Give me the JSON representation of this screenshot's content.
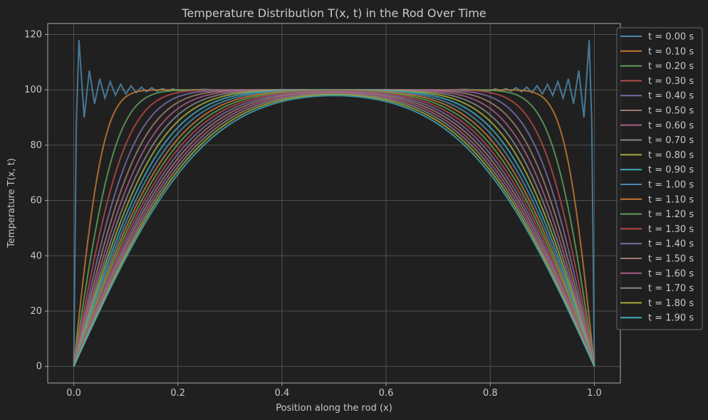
{
  "chart_data": {
    "type": "line",
    "title": "Temperature Distribution T(x, t) in the Rod Over Time",
    "xlabel": "Position along the rod (x)",
    "ylabel": "Temperature T(x, t)",
    "xlim": [
      -0.05,
      1.05
    ],
    "ylim": [
      -6,
      124
    ],
    "xticks": [
      0.0,
      0.2,
      0.4,
      0.6,
      0.8,
      1.0
    ],
    "xtick_labels": [
      "0.0",
      "0.2",
      "0.4",
      "0.6",
      "0.8",
      "1.0"
    ],
    "yticks": [
      0,
      20,
      40,
      60,
      80,
      100,
      120
    ],
    "ytick_labels": [
      "0",
      "20",
      "40",
      "60",
      "80",
      "100",
      "120"
    ],
    "grid": true,
    "legend_position": "right, outside plot at top",
    "background": "#202020",
    "grid_color": "#505050",
    "axis_color": "#aaaaaa",
    "colors": [
      "#4e87ad",
      "#c27a33",
      "#5f9f5a",
      "#b54848",
      "#7e6aa6",
      "#a07b6f",
      "#a85a86",
      "#868686",
      "#a8aa3b",
      "#3ea9b9"
    ],
    "series": [
      {
        "name": "t = 0.00 s",
        "t": 0.0,
        "x": [
          0.0,
          0.005,
          0.01,
          0.02,
          0.03,
          0.04,
          0.05,
          0.06,
          0.07,
          0.08,
          0.09,
          0.1,
          0.11,
          0.12,
          0.13,
          0.14,
          0.15,
          0.16,
          0.17,
          0.18,
          0.19,
          0.2,
          0.25,
          0.3,
          0.4,
          0.5,
          0.6,
          0.7,
          0.75,
          0.8,
          0.81,
          0.82,
          0.83,
          0.84,
          0.85,
          0.86,
          0.87,
          0.88,
          0.89,
          0.9,
          0.91,
          0.92,
          0.93,
          0.94,
          0.95,
          0.96,
          0.97,
          0.98,
          0.99,
          0.995,
          1.0
        ],
        "y": [
          0,
          88,
          118,
          90,
          107,
          95,
          104,
          97,
          103,
          98,
          102,
          98.5,
          101.5,
          99,
          101,
          99.3,
          100.8,
          99.5,
          100.5,
          99.6,
          100.4,
          99.7,
          100.2,
          99.8,
          100.1,
          100,
          100.1,
          99.8,
          100.2,
          99.7,
          100.4,
          99.6,
          100.5,
          99.5,
          100.8,
          99.3,
          101,
          99,
          101.5,
          98.5,
          102,
          98,
          103,
          97,
          104,
          95,
          107,
          90,
          118,
          88,
          0
        ]
      },
      {
        "name": "t = 0.10 s",
        "t": 0.1
      },
      {
        "name": "t = 0.20 s",
        "t": 0.2
      },
      {
        "name": "t = 0.30 s",
        "t": 0.3
      },
      {
        "name": "t = 0.40 s",
        "t": 0.4
      },
      {
        "name": "t = 0.50 s",
        "t": 0.5
      },
      {
        "name": "t = 0.60 s",
        "t": 0.6
      },
      {
        "name": "t = 0.70 s",
        "t": 0.7
      },
      {
        "name": "t = 0.80 s",
        "t": 0.8
      },
      {
        "name": "t = 0.90 s",
        "t": 0.9
      },
      {
        "name": "t = 1.00 s",
        "t": 1.0
      },
      {
        "name": "t = 1.10 s",
        "t": 1.1
      },
      {
        "name": "t = 1.20 s",
        "t": 1.2
      },
      {
        "name": "t = 1.30 s",
        "t": 1.3
      },
      {
        "name": "t = 1.40 s",
        "t": 1.4
      },
      {
        "name": "t = 1.50 s",
        "t": 1.5
      },
      {
        "name": "t = 1.60 s",
        "t": 1.6
      },
      {
        "name": "t = 1.70 s",
        "t": 1.7
      },
      {
        "name": "t = 1.80 s",
        "t": 1.8
      },
      {
        "name": "t = 1.90 s",
        "t": 1.9
      }
    ]
  }
}
